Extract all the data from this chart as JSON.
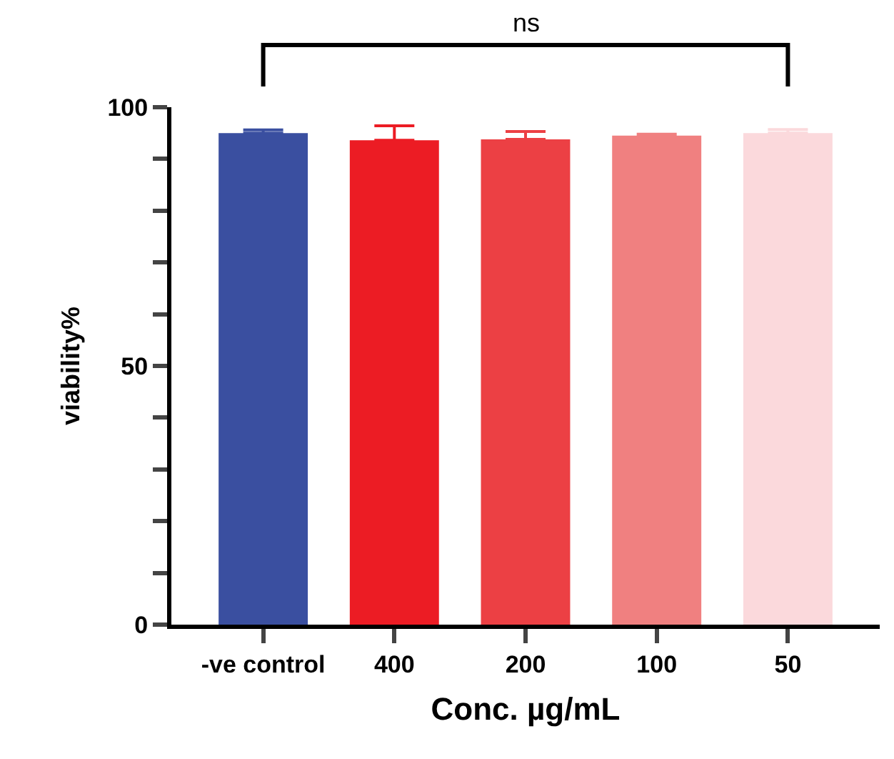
{
  "chart_data": {
    "type": "bar",
    "xlabel": "Conc. µg/mL",
    "ylabel": "viability%",
    "categories": [
      "-ve control",
      "400",
      "200",
      "100",
      "50"
    ],
    "values": [
      95.0,
      93.6,
      93.8,
      94.5,
      95.0
    ],
    "errors": [
      [
        95.0,
        95.6
      ],
      [
        93.6,
        96.4
      ],
      [
        93.8,
        95.3
      ],
      [
        94.5,
        94.8
      ],
      [
        95.0,
        95.7
      ]
    ],
    "colors": [
      "#3a4fa0",
      "#ec1c24",
      "#ec4044",
      "#f08080",
      "#fbd9dc"
    ],
    "ylim": [
      0,
      100
    ],
    "yticks": [
      0,
      {
        "value": 10,
        "label": null
      },
      {
        "value": 20,
        "label": null
      },
      {
        "value": 30,
        "label": null
      },
      {
        "value": 40,
        "label": null
      },
      50,
      {
        "value": 60,
        "label": null
      },
      {
        "value": 70,
        "label": null
      },
      {
        "value": 80,
        "label": null
      },
      {
        "value": 90,
        "label": null
      },
      100
    ],
    "annotations": [
      "ns"
    ]
  }
}
